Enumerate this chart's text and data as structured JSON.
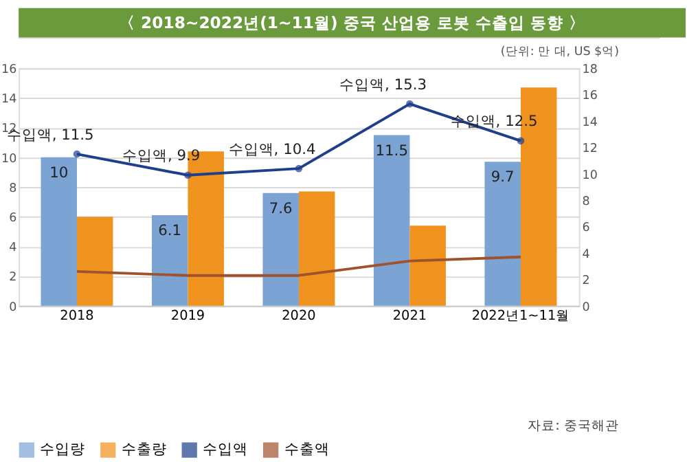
{
  "chart_data": {
    "type": "bar",
    "title": "〈 2018~2022년(1~11월) 중국 산업용 로봇 수출입 동향 〉",
    "subtitle": "(단위: 만 대, US $억)",
    "annotations": [
      "자료: 중국해관"
    ],
    "categories": [
      "2018",
      "2019",
      "2020",
      "2021",
      "2022년1~11월"
    ],
    "ylim": [
      0,
      16
    ],
    "yticks": [
      0,
      2,
      4,
      6,
      8,
      10,
      12,
      14,
      16
    ],
    "y2lim": [
      0,
      18
    ],
    "y2ticks": [
      0,
      2,
      4,
      6,
      8,
      10,
      12,
      14,
      16,
      18
    ],
    "grid": "y",
    "legend": "bottom",
    "series": [
      {
        "name": "수입량",
        "type": "bar",
        "color": "#7ba3d4",
        "values": [
          10,
          6.1,
          7.6,
          11.5,
          9.7
        ],
        "value_labels": [
          "10",
          "6.1",
          "7.6",
          "11.5",
          "9.7"
        ]
      },
      {
        "name": "수출량",
        "type": "bar",
        "color": "#f0921e",
        "values": [
          6,
          10.4,
          7.7,
          5.4,
          14.7
        ]
      },
      {
        "name": "수입액",
        "type": "line",
        "axis": "y2",
        "marker": "circle",
        "color": "#1f3f8c",
        "values": [
          11.5,
          9.9,
          10.4,
          15.3,
          12.5
        ],
        "value_labels": [
          "수입액, 11.5",
          "수입액, 9.9",
          "수입액, 10.4",
          "수입액, 15.3",
          "수입액, 12.5"
        ]
      },
      {
        "name": "수출액",
        "type": "line",
        "axis": "y2",
        "marker": "none",
        "color": "#a0522d",
        "values": [
          2.6,
          2.3,
          2.3,
          3.4,
          3.7
        ]
      }
    ]
  }
}
